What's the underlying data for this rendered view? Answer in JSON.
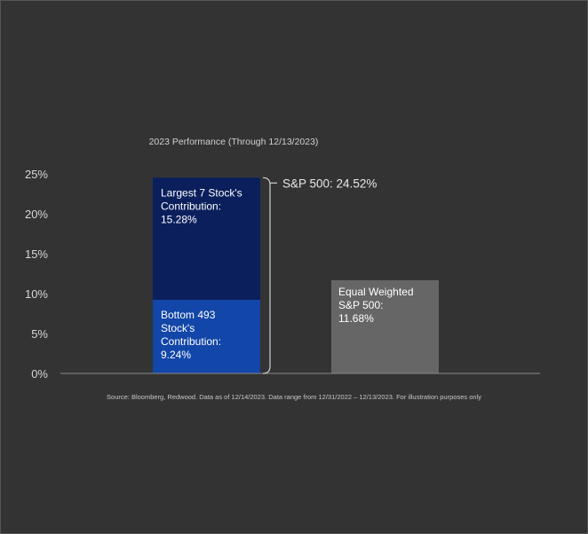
{
  "chart_data": {
    "type": "bar",
    "title": "2023 Performance (Through 12/13/2023)",
    "xlabel": "",
    "ylabel": "",
    "ylim": [
      0,
      25
    ],
    "yticks": [
      {
        "value": 0,
        "label": "0%"
      },
      {
        "value": 5,
        "label": "5%"
      },
      {
        "value": 10,
        "label": "10%"
      },
      {
        "value": 15,
        "label": "15%"
      },
      {
        "value": 20,
        "label": "20%"
      },
      {
        "value": 25,
        "label": "25%"
      }
    ],
    "grid": false,
    "legend": "none",
    "stacked_bar": {
      "segments": [
        {
          "lines": [
            "Bottom 493",
            "Stock's",
            "Contribution:",
            "9.24%"
          ],
          "value": 9.24,
          "color": "#1246a8"
        },
        {
          "lines": [
            "Largest 7 Stock's",
            "Contribution:",
            "15.28%"
          ],
          "value": 15.28,
          "color": "#0a1f5c"
        }
      ],
      "total_label": "S&P 500: 24.52%",
      "total": 24.52
    },
    "single_bar": {
      "lines": [
        "Equal Weighted",
        "S&P 500:",
        "11.68%"
      ],
      "value": 11.68,
      "color": "#666666"
    },
    "source": "Source: Bloomberg, Redwood. Data as of 12/14/2023. Data range from 12/31/2022 – 12/13/2023. For illustration purposes only"
  }
}
